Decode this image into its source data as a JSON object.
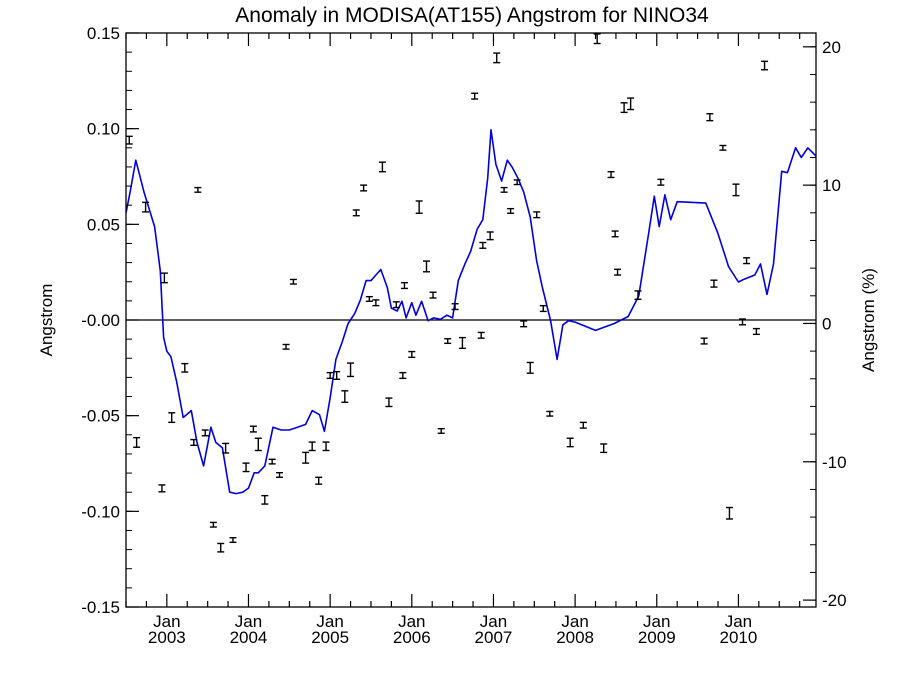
{
  "chart_data": {
    "type": "line",
    "title": "Anomaly in MODISA(AT155) Angstrom for NINO34",
    "ylabel": "Angstrom",
    "ylabel_right": "Angstrom (%)",
    "x_unit": "year",
    "xlim": [
      2002.5,
      2010.95
    ],
    "ylim": [
      -0.15,
      0.15
    ],
    "ylim_right": [
      -20.5,
      21
    ],
    "x_ticks": [
      {
        "x": 2003.0,
        "label1": "Jan",
        "label2": "2003"
      },
      {
        "x": 2004.0,
        "label1": "Jan",
        "label2": "2004"
      },
      {
        "x": 2005.0,
        "label1": "Jan",
        "label2": "2005"
      },
      {
        "x": 2006.0,
        "label1": "Jan",
        "label2": "2006"
      },
      {
        "x": 2007.0,
        "label1": "Jan",
        "label2": "2007"
      },
      {
        "x": 2008.0,
        "label1": "Jan",
        "label2": "2008"
      },
      {
        "x": 2009.0,
        "label1": "Jan",
        "label2": "2009"
      },
      {
        "x": 2010.0,
        "label1": "Jan",
        "label2": "2010"
      }
    ],
    "y_ticks": [
      {
        "value": 0.15,
        "label": "0.15"
      },
      {
        "value": 0.1,
        "label": "0.10"
      },
      {
        "value": 0.05,
        "label": "0.05"
      },
      {
        "value": 0.0,
        "label": "-0.00"
      },
      {
        "value": -0.05,
        "label": "-0.05"
      },
      {
        "value": -0.1,
        "label": "-0.10"
      },
      {
        "value": -0.15,
        "label": "-0.15"
      }
    ],
    "y_ticks_right": [
      {
        "value": 20,
        "label": "20"
      },
      {
        "value": 10,
        "label": "10"
      },
      {
        "value": 0,
        "label": "0"
      },
      {
        "value": -10,
        "label": "-10"
      },
      {
        "value": -20,
        "label": "-20"
      }
    ],
    "zero_line": true,
    "grid": false,
    "colors": {
      "line": "#0000dd",
      "points": "#000000",
      "axes": "#000000"
    },
    "series": [
      {
        "type": "line",
        "axis": "right",
        "x": [
          2002.5,
          2002.55,
          2002.62,
          2002.72,
          2002.85,
          2002.92,
          2002.96,
          2003.0,
          2003.05,
          2003.12,
          2003.2,
          2003.3,
          2003.37,
          2003.45,
          2003.54,
          2003.6,
          2003.68,
          2003.77,
          2003.85,
          2003.93,
          2004.0,
          2004.07,
          2004.12,
          2004.2,
          2004.3,
          2004.4,
          2004.5,
          2004.6,
          2004.7,
          2004.78,
          2004.87,
          2004.93,
          2005.0,
          2005.07,
          2005.15,
          2005.22,
          2005.3,
          2005.37,
          2005.44,
          2005.5,
          2005.56,
          2005.62,
          2005.7,
          2005.75,
          2005.82,
          2005.88,
          2005.93,
          2006.0,
          2006.05,
          2006.12,
          2006.2,
          2006.27,
          2006.35,
          2006.43,
          2006.5,
          2006.57,
          2006.65,
          2006.72,
          2006.8,
          2006.87,
          2006.93,
          2006.97,
          2007.03,
          2007.1,
          2007.17,
          2007.23,
          2007.3,
          2007.37,
          2007.45,
          2007.53,
          2007.6,
          2007.7,
          2007.78,
          2007.85,
          2007.92,
          2008.0,
          2008.25,
          2008.48,
          2008.65,
          2008.78,
          2008.9,
          2008.97,
          2009.03,
          2009.1,
          2009.17,
          2009.25,
          2009.6,
          2009.75,
          2009.88,
          2010.0,
          2010.07,
          2010.2,
          2010.27,
          2010.35,
          2010.43,
          2010.53,
          2010.6,
          2010.7,
          2010.77,
          2010.85,
          2010.95
        ],
        "y": [
          8.0,
          9.5,
          11.8,
          9.5,
          7.0,
          3.8,
          -1.0,
          -2.0,
          -2.4,
          -4.2,
          -6.8,
          -6.3,
          -8.6,
          -10.3,
          -7.5,
          -8.6,
          -9.0,
          -12.2,
          -12.3,
          -12.2,
          -11.9,
          -10.8,
          -10.8,
          -10.3,
          -7.5,
          -7.7,
          -7.7,
          -7.5,
          -7.3,
          -6.3,
          -6.6,
          -7.8,
          -5.4,
          -2.6,
          -1.3,
          0.0,
          0.7,
          1.7,
          3.1,
          3.1,
          3.5,
          3.9,
          2.6,
          1.1,
          0.9,
          1.6,
          0.4,
          1.5,
          0.6,
          1.6,
          0.2,
          0.4,
          0.3,
          0.6,
          0.4,
          3.1,
          4.3,
          5.2,
          6.8,
          7.5,
          10.5,
          14.0,
          11.5,
          10.3,
          11.8,
          11.3,
          10.5,
          9.5,
          7.7,
          4.5,
          2.6,
          0.2,
          -2.6,
          -0.1,
          0.2,
          0.1,
          -0.5,
          0.0,
          0.5,
          2.0,
          6.5,
          9.2,
          7.0,
          9.3,
          7.5,
          8.8,
          8.7,
          6.5,
          4.1,
          3.0,
          3.2,
          3.5,
          4.3,
          2.1,
          4.3,
          11.0,
          10.9,
          12.7,
          12.0,
          12.7,
          12.1
        ]
      },
      {
        "type": "errorbar",
        "axis": "left",
        "points": [
          {
            "x": 2002.54,
            "y": 0.094,
            "err": 0.002
          },
          {
            "x": 2002.63,
            "y": -0.064,
            "err": 0.0025
          },
          {
            "x": 2002.74,
            "y": 0.059,
            "err": 0.0025
          },
          {
            "x": 2002.94,
            "y": -0.088,
            "err": 0.0018
          },
          {
            "x": 2002.97,
            "y": 0.022,
            "err": 0.0025
          },
          {
            "x": 2003.06,
            "y": -0.051,
            "err": 0.0025
          },
          {
            "x": 2003.22,
            "y": -0.025,
            "err": 0.0022
          },
          {
            "x": 2003.33,
            "y": -0.064,
            "err": 0.0015
          },
          {
            "x": 2003.38,
            "y": 0.068,
            "err": 0.0012
          },
          {
            "x": 2003.47,
            "y": -0.059,
            "err": 0.0015
          },
          {
            "x": 2003.57,
            "y": -0.107,
            "err": 0.0012
          },
          {
            "x": 2003.66,
            "y": -0.119,
            "err": 0.0022
          },
          {
            "x": 2003.72,
            "y": -0.067,
            "err": 0.0025
          },
          {
            "x": 2003.81,
            "y": -0.115,
            "err": 0.0012
          },
          {
            "x": 2003.97,
            "y": -0.077,
            "err": 0.0022
          },
          {
            "x": 2004.06,
            "y": -0.057,
            "err": 0.0015
          },
          {
            "x": 2004.12,
            "y": -0.065,
            "err": 0.0032
          },
          {
            "x": 2004.2,
            "y": -0.094,
            "err": 0.0022
          },
          {
            "x": 2004.29,
            "y": -0.074,
            "err": 0.0012
          },
          {
            "x": 2004.38,
            "y": -0.081,
            "err": 0.0012
          },
          {
            "x": 2004.46,
            "y": -0.014,
            "err": 0.0012
          },
          {
            "x": 2004.55,
            "y": 0.02,
            "err": 0.0012
          },
          {
            "x": 2004.7,
            "y": -0.072,
            "err": 0.0028
          },
          {
            "x": 2004.78,
            "y": -0.066,
            "err": 0.0022
          },
          {
            "x": 2004.86,
            "y": -0.084,
            "err": 0.0018
          },
          {
            "x": 2004.95,
            "y": -0.066,
            "err": 0.0022
          },
          {
            "x": 2005.0,
            "y": -0.029,
            "err": 0.0015
          },
          {
            "x": 2005.08,
            "y": -0.029,
            "err": 0.002
          },
          {
            "x": 2005.18,
            "y": -0.04,
            "err": 0.003
          },
          {
            "x": 2005.25,
            "y": -0.026,
            "err": 0.0035
          },
          {
            "x": 2005.32,
            "y": 0.056,
            "err": 0.0015
          },
          {
            "x": 2005.41,
            "y": 0.069,
            "err": 0.0015
          },
          {
            "x": 2005.48,
            "y": 0.011,
            "err": 0.0012
          },
          {
            "x": 2005.56,
            "y": 0.009,
            "err": 0.0015
          },
          {
            "x": 2005.64,
            "y": 0.08,
            "err": 0.0025
          },
          {
            "x": 2005.72,
            "y": -0.043,
            "err": 0.0022
          },
          {
            "x": 2005.81,
            "y": 0.008,
            "err": 0.0015
          },
          {
            "x": 2005.89,
            "y": -0.029,
            "err": 0.0015
          },
          {
            "x": 2005.91,
            "y": 0.018,
            "err": 0.0015
          },
          {
            "x": 2006.0,
            "y": -0.018,
            "err": 0.0015
          },
          {
            "x": 2006.09,
            "y": 0.059,
            "err": 0.0032
          },
          {
            "x": 2006.18,
            "y": 0.028,
            "err": 0.0028
          },
          {
            "x": 2006.26,
            "y": 0.013,
            "err": 0.0015
          },
          {
            "x": 2006.36,
            "y": -0.058,
            "err": 0.0012
          },
          {
            "x": 2006.44,
            "y": -0.011,
            "err": 0.0012
          },
          {
            "x": 2006.53,
            "y": 0.007,
            "err": 0.0015
          },
          {
            "x": 2006.62,
            "y": -0.012,
            "err": 0.0028
          },
          {
            "x": 2006.77,
            "y": 0.117,
            "err": 0.0015
          },
          {
            "x": 2006.85,
            "y": -0.008,
            "err": 0.0015
          },
          {
            "x": 2006.87,
            "y": 0.039,
            "err": 0.0015
          },
          {
            "x": 2006.96,
            "y": 0.044,
            "err": 0.002
          },
          {
            "x": 2007.04,
            "y": 0.137,
            "err": 0.0025
          },
          {
            "x": 2007.13,
            "y": 0.068,
            "err": 0.0012
          },
          {
            "x": 2007.21,
            "y": 0.057,
            "err": 0.0012
          },
          {
            "x": 2007.29,
            "y": 0.072,
            "err": 0.0012
          },
          {
            "x": 2007.37,
            "y": -0.002,
            "err": 0.0015
          },
          {
            "x": 2007.45,
            "y": -0.025,
            "err": 0.0028
          },
          {
            "x": 2007.53,
            "y": 0.055,
            "err": 0.0015
          },
          {
            "x": 2007.61,
            "y": 0.006,
            "err": 0.0015
          },
          {
            "x": 2007.69,
            "y": -0.049,
            "err": 0.0012
          },
          {
            "x": 2007.94,
            "y": -0.064,
            "err": 0.0022
          },
          {
            "x": 2008.1,
            "y": -0.055,
            "err": 0.0015
          },
          {
            "x": 2008.27,
            "y": 0.147,
            "err": 0.0025
          },
          {
            "x": 2008.35,
            "y": -0.067,
            "err": 0.0022
          },
          {
            "x": 2008.44,
            "y": 0.076,
            "err": 0.0015
          },
          {
            "x": 2008.49,
            "y": 0.045,
            "err": 0.0015
          },
          {
            "x": 2008.52,
            "y": 0.025,
            "err": 0.0015
          },
          {
            "x": 2008.6,
            "y": 0.111,
            "err": 0.0025
          },
          {
            "x": 2008.68,
            "y": 0.113,
            "err": 0.003
          },
          {
            "x": 2008.77,
            "y": 0.013,
            "err": 0.0022
          },
          {
            "x": 2009.05,
            "y": 0.072,
            "err": 0.0015
          },
          {
            "x": 2009.58,
            "y": -0.011,
            "err": 0.0015
          },
          {
            "x": 2009.65,
            "y": 0.106,
            "err": 0.0018
          },
          {
            "x": 2009.7,
            "y": 0.019,
            "err": 0.0018
          },
          {
            "x": 2009.81,
            "y": 0.09,
            "err": 0.0012
          },
          {
            "x": 2009.89,
            "y": -0.101,
            "err": 0.003
          },
          {
            "x": 2009.97,
            "y": 0.068,
            "err": 0.003
          },
          {
            "x": 2010.05,
            "y": -0.001,
            "err": 0.0015
          },
          {
            "x": 2010.1,
            "y": 0.031,
            "err": 0.0015
          },
          {
            "x": 2010.22,
            "y": -0.006,
            "err": 0.0015
          },
          {
            "x": 2010.32,
            "y": 0.133,
            "err": 0.0022
          }
        ]
      }
    ]
  }
}
